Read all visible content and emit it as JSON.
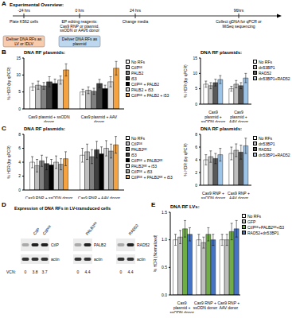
{
  "panel_labels": [
    "A",
    "B",
    "C",
    "D",
    "E"
  ],
  "overview": {
    "title": "Experimental Overview:",
    "timeline": [
      {
        "time": "-24 hrs",
        "event": "Plate K562 cells",
        "delivery": "Deliver DNA RFs as LV or IDLV"
      },
      {
        "time": "0 hrs",
        "event": "EP editing reagents: Cas9 RNP or plasmid, ssODN or AAV6 donor",
        "delivery": "Deliver DNA RFs as plasmid"
      },
      {
        "time": "24 hrs",
        "event": "Change media"
      },
      {
        "time": "96hrs",
        "event": "Collect gDNA for qPCR or MiSeq sequencing"
      }
    ]
  },
  "chart_data": [
    {
      "type": "bar",
      "title": "DNA RF plasmids:",
      "y_label": "% HDR (by qPCR)",
      "grid": false,
      "categories": [
        "Cas9 plasmid + ssODN donor",
        "Cas9 plasmid + AAV donor"
      ],
      "ylim": [
        0,
        15
      ],
      "yticks": [
        0,
        5,
        10,
        15
      ],
      "series": [
        {
          "name": "No RFs",
          "color": "#ffffff",
          "values": [
            6.5,
            5.0
          ],
          "errors": [
            1.0,
            0.8
          ]
        },
        {
          "name": "CtIPᴰᴱ",
          "color": "#bfbfbf",
          "values": [
            7.0,
            5.5
          ],
          "errors": [
            1.2,
            1.0
          ]
        },
        {
          "name": "PALB2",
          "color": "#808080",
          "values": [
            6.8,
            5.2
          ],
          "errors": [
            1.0,
            0.9
          ]
        },
        {
          "name": "i53",
          "color": "#404040",
          "values": [
            8.0,
            7.5
          ],
          "errors": [
            1.5,
            1.2
          ]
        },
        {
          "name": "CtIPᴰᴱ + PALB2",
          "color": "#000000",
          "values": [
            7.5,
            6.0
          ],
          "errors": [
            1.3,
            1.0
          ]
        },
        {
          "name": "PALB2 + i53",
          "color": "#d9d9d9",
          "values": [
            8.5,
            8.0
          ],
          "errors": [
            1.2,
            1.5
          ]
        },
        {
          "name": "CtIPᴰᴱ + PALB2 + i53",
          "color": "#f4a340",
          "values": [
            11.5,
            12.0
          ],
          "errors": [
            1.8,
            2.0
          ]
        }
      ]
    },
    {
      "type": "bar",
      "title": "DNA RF plasmids:",
      "y_label": "% HDR (by qPCR)",
      "grid": false,
      "categories": [
        "Cas9 plasmid + ssODN donor",
        "Cas9 plasmid + AAV donor"
      ],
      "ylim": [
        0,
        15
      ],
      "yticks": [
        0,
        5,
        10,
        15
      ],
      "series": [
        {
          "name": "No RFs",
          "color": "#ffffff",
          "values": [
            6.5,
            5.0
          ],
          "errors": [
            1.0,
            0.8
          ]
        },
        {
          "name": "dn53BP1",
          "color": "#bfbfbf",
          "values": [
            6.0,
            6.5
          ],
          "errors": [
            1.0,
            1.2
          ]
        },
        {
          "name": "RAD52",
          "color": "#595959",
          "values": [
            7.0,
            6.0
          ],
          "errors": [
            1.1,
            1.0
          ]
        },
        {
          "name": "dn53BP1+RAD52",
          "color": "#9dc3e6",
          "values": [
            8.0,
            8.5
          ],
          "errors": [
            1.3,
            1.5
          ]
        }
      ]
    },
    {
      "type": "bar",
      "title": "DNA RF plasmids:",
      "y_label": "% HDR (by qPCR)",
      "grid": false,
      "categories": [
        "Cas9 RNP + ssODN donor",
        "Cas9 RNP + AAV donor"
      ],
      "ylim": [
        0,
        8
      ],
      "yticks": [
        0,
        2,
        4,
        6,
        8
      ],
      "series": [
        {
          "name": "No RFs",
          "color": "#ffffff",
          "values": [
            4.0,
            5.0
          ],
          "errors": [
            0.8,
            1.0
          ]
        },
        {
          "name": "CtIPᴰᴱ",
          "color": "#bfbfbf",
          "values": [
            3.5,
            5.5
          ],
          "errors": [
            0.9,
            1.1
          ]
        },
        {
          "name": "PALB2ᴷᴿ",
          "color": "#808080",
          "values": [
            4.2,
            4.8
          ],
          "errors": [
            0.8,
            1.0
          ]
        },
        {
          "name": "i53",
          "color": "#404040",
          "values": [
            3.8,
            5.8
          ],
          "errors": [
            0.9,
            1.2
          ]
        },
        {
          "name": "CtIPᴰᴱ + PALB2ᴷᴿ",
          "color": "#000000",
          "values": [
            3.6,
            5.2
          ],
          "errors": [
            0.8,
            1.0
          ]
        },
        {
          "name": "PALB2ᴷᴿ + i53",
          "color": "#d9d9d9",
          "values": [
            4.0,
            6.0
          ],
          "errors": [
            0.9,
            1.1
          ]
        },
        {
          "name": "CtIPᴰᴱ + i53",
          "color": "#a6a6a6",
          "values": [
            3.7,
            5.6
          ],
          "errors": [
            0.8,
            1.0
          ]
        },
        {
          "name": "CtIPᴰᴱ + PALB2ᴷᴿ + i53",
          "color": "#f4a340",
          "values": [
            4.5,
            6.5
          ],
          "errors": [
            1.0,
            1.2
          ]
        }
      ]
    },
    {
      "type": "bar",
      "title": "DNA RF plasmids:",
      "y_label": "% HDR (by qPCR)",
      "grid": false,
      "categories": [
        "Cas9 RNP + ssODN donor",
        "Cas9 RNP + AAV donor"
      ],
      "ylim": [
        0,
        8
      ],
      "yticks": [
        0,
        2,
        4,
        6,
        8
      ],
      "series": [
        {
          "name": "No RFs",
          "color": "#ffffff",
          "values": [
            4.0,
            5.0
          ],
          "errors": [
            0.8,
            1.0
          ]
        },
        {
          "name": "dn53BP1",
          "color": "#bfbfbf",
          "values": [
            4.5,
            5.5
          ],
          "errors": [
            0.9,
            1.0
          ]
        },
        {
          "name": "RAD52",
          "color": "#595959",
          "values": [
            4.2,
            5.2
          ],
          "errors": [
            0.8,
            1.1
          ]
        },
        {
          "name": "dn53BP1+RAD52",
          "color": "#9dc3e6",
          "values": [
            4.8,
            6.2
          ],
          "errors": [
            1.0,
            1.2
          ]
        }
      ]
    },
    {
      "type": "bar",
      "title": "DNA RF LVs:",
      "y_label": "% HDR (Normalized)",
      "grid": false,
      "categories": [
        "Cas9 plasmid + ssODN donor",
        "Cas9 RNP + ssODN donor",
        "Cas9 RNP + AAV donor"
      ],
      "ylim": [
        0,
        1.5
      ],
      "yticks": [
        {
          "value": 0,
          "label": "0.0"
        },
        {
          "value": 0.5,
          "label": "0.5"
        },
        {
          "value": 1,
          "label": "1.0"
        },
        {
          "value": 1.5,
          "label": "1.5"
        }
      ],
      "series": [
        {
          "name": "No RFs",
          "color": "#ffffff",
          "values": [
            1.0,
            1.0,
            1.0
          ],
          "errors": [
            0.1,
            0.1,
            0.1
          ]
        },
        {
          "name": "GFP",
          "color": "#bfbfbf",
          "values": [
            1.05,
            0.95,
            1.0
          ],
          "errors": [
            0.12,
            0.1,
            0.1
          ]
        },
        {
          "name": "CtIPᴰᴱ+PALB2ᴷᴿ+i53",
          "color": "#70ad47",
          "values": [
            1.2,
            1.1,
            1.15
          ],
          "errors": [
            0.15,
            0.12,
            0.15
          ]
        },
        {
          "name": "RAD52+dn53BP1",
          "color": "#4472c4",
          "values": [
            1.1,
            1.0,
            1.2
          ],
          "errors": [
            0.12,
            0.1,
            0.15
          ]
        }
      ]
    }
  ],
  "blots": {
    "title": "Expression of DNA RFs in LV-transduced cells",
    "vcn_label": "VCN:",
    "loading": "actin",
    "items": [
      {
        "protein": "CtIP",
        "lanes": [
          null,
          "CtIP",
          "CtIPᴰᴱ"
        ],
        "vcn": [
          0,
          3.8,
          3.7
        ]
      },
      {
        "protein": "PALB2",
        "lanes": [
          null,
          "PALB2ᴷᴿ"
        ],
        "vcn": [
          0,
          4.4
        ]
      },
      {
        "protein": "RAD52",
        "lanes": [
          null,
          "RAD52"
        ],
        "vcn": [
          0,
          4.4
        ]
      }
    ]
  }
}
